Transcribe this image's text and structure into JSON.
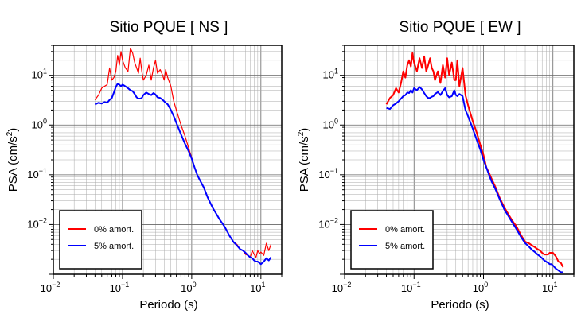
{
  "chart_data": [
    {
      "type": "line",
      "title": "Sitio PQUE [ NS ]",
      "xlabel": "Periodo (s)",
      "ylabel": "PSA (cm/s",
      "ylabel_sup": "2",
      "ylabel_close": ")",
      "xscale": "log",
      "yscale": "log",
      "xlim": [
        0.01,
        20
      ],
      "ylim": [
        0.001,
        40
      ],
      "grid": true,
      "legend_position": "bottom-left",
      "xticks": [
        {
          "value": 0.01,
          "base": "10",
          "exp": "−2"
        },
        {
          "value": 0.1,
          "base": "10",
          "exp": "−1"
        },
        {
          "value": 1,
          "base": "10",
          "exp": "0"
        },
        {
          "value": 10,
          "base": "10",
          "exp": "1"
        }
      ],
      "yticks": [
        {
          "value": 10,
          "base": "10",
          "exp": "1"
        },
        {
          "value": 1,
          "base": "10",
          "exp": "0"
        },
        {
          "value": 0.1,
          "base": "10",
          "exp": "−1"
        },
        {
          "value": 0.01,
          "base": "10",
          "exp": "−2"
        }
      ],
      "series": [
        {
          "name": "0% amort.",
          "color": "#ff0000",
          "width": 1.2,
          "x": [
            0.04,
            0.045,
            0.05,
            0.055,
            0.06,
            0.065,
            0.07,
            0.075,
            0.08,
            0.085,
            0.09,
            0.095,
            0.1,
            0.11,
            0.12,
            0.13,
            0.14,
            0.15,
            0.16,
            0.17,
            0.18,
            0.19,
            0.2,
            0.22,
            0.24,
            0.26,
            0.28,
            0.3,
            0.32,
            0.35,
            0.38,
            0.4,
            0.42,
            0.45,
            0.5,
            0.55,
            0.6,
            0.7,
            0.8,
            0.9,
            1.0,
            1.1,
            1.2,
            1.3,
            1.5,
            1.7,
            2.0,
            2.5,
            3.0,
            3.5,
            4.0,
            4.5,
            5.0,
            5.5,
            6.0,
            6.5,
            7.0,
            7.5,
            8.0,
            8.5,
            9.0,
            9.5,
            10,
            11,
            12,
            13,
            14
          ],
          "y": [
            3.2,
            4.0,
            5.5,
            6.0,
            6.5,
            14,
            8.0,
            9.0,
            12,
            25,
            16,
            30,
            20,
            14,
            12,
            35,
            28,
            18,
            14,
            11,
            22,
            12,
            8.0,
            10,
            16,
            8.0,
            14,
            20,
            11,
            13,
            10,
            8.0,
            13,
            9.0,
            6.0,
            3.0,
            2.0,
            1.0,
            0.6,
            0.35,
            0.22,
            0.14,
            0.1,
            0.08,
            0.055,
            0.035,
            0.022,
            0.013,
            0.009,
            0.006,
            0.0045,
            0.004,
            0.0032,
            0.003,
            0.0025,
            0.0024,
            0.0022,
            0.003,
            0.0025,
            0.0022,
            0.003,
            0.0026,
            0.0028,
            0.0024,
            0.0042,
            0.003,
            0.004
          ]
        },
        {
          "name": "5% amort.",
          "color": "#0000ff",
          "width": 2,
          "x": [
            0.04,
            0.045,
            0.05,
            0.055,
            0.06,
            0.065,
            0.07,
            0.075,
            0.08,
            0.085,
            0.09,
            0.095,
            0.1,
            0.11,
            0.12,
            0.13,
            0.14,
            0.15,
            0.16,
            0.17,
            0.18,
            0.19,
            0.2,
            0.22,
            0.24,
            0.26,
            0.28,
            0.3,
            0.32,
            0.35,
            0.38,
            0.4,
            0.42,
            0.45,
            0.5,
            0.55,
            0.6,
            0.7,
            0.8,
            0.9,
            1.0,
            1.1,
            1.2,
            1.3,
            1.5,
            1.7,
            2.0,
            2.5,
            3.0,
            3.5,
            4.0,
            4.5,
            5.0,
            5.5,
            6.0,
            6.5,
            7.0,
            7.5,
            8.0,
            8.5,
            9.0,
            9.5,
            10,
            11,
            12,
            13,
            14
          ],
          "y": [
            2.6,
            2.8,
            2.7,
            2.9,
            2.8,
            3.2,
            3.5,
            4.5,
            5.8,
            6.8,
            6.5,
            6.0,
            6.5,
            6.0,
            5.5,
            5.0,
            4.8,
            4.2,
            3.6,
            3.4,
            3.4,
            3.5,
            4.0,
            4.5,
            4.2,
            4.0,
            4.4,
            4.1,
            3.6,
            3.5,
            3.2,
            3.0,
            2.8,
            2.6,
            2.0,
            1.5,
            1.1,
            0.65,
            0.42,
            0.3,
            0.21,
            0.14,
            0.1,
            0.08,
            0.055,
            0.035,
            0.022,
            0.013,
            0.009,
            0.006,
            0.0045,
            0.0038,
            0.0032,
            0.003,
            0.0027,
            0.0024,
            0.0022,
            0.0021,
            0.0019,
            0.0018,
            0.0018,
            0.0017,
            0.0016,
            0.0018,
            0.0021,
            0.0019,
            0.0022
          ]
        }
      ]
    },
    {
      "type": "line",
      "title": "Sitio PQUE [ EW ]",
      "xlabel": "Periodo (s)",
      "ylabel": "PSA (cm/s",
      "ylabel_sup": "2",
      "ylabel_close": ")",
      "xscale": "log",
      "yscale": "log",
      "xlim": [
        0.01,
        20
      ],
      "ylim": [
        0.001,
        40
      ],
      "grid": true,
      "legend_position": "bottom-left",
      "xticks": [
        {
          "value": 0.01,
          "base": "10",
          "exp": "−2"
        },
        {
          "value": 0.1,
          "base": "10",
          "exp": "−1"
        },
        {
          "value": 1,
          "base": "10",
          "exp": "0"
        },
        {
          "value": 10,
          "base": "10",
          "exp": "1"
        }
      ],
      "yticks": [
        {
          "value": 10,
          "base": "10",
          "exp": "1"
        },
        {
          "value": 1,
          "base": "10",
          "exp": "0"
        },
        {
          "value": 0.1,
          "base": "10",
          "exp": "−1"
        },
        {
          "value": 0.01,
          "base": "10",
          "exp": "−2"
        }
      ],
      "series": [
        {
          "name": "0% amort.",
          "color": "#ff0000",
          "width": 2,
          "x": [
            0.04,
            0.045,
            0.05,
            0.055,
            0.06,
            0.065,
            0.07,
            0.075,
            0.08,
            0.085,
            0.09,
            0.095,
            0.1,
            0.11,
            0.12,
            0.13,
            0.14,
            0.15,
            0.16,
            0.17,
            0.18,
            0.19,
            0.2,
            0.22,
            0.24,
            0.26,
            0.28,
            0.3,
            0.32,
            0.35,
            0.38,
            0.4,
            0.42,
            0.45,
            0.5,
            0.55,
            0.6,
            0.7,
            0.8,
            0.9,
            1.0,
            1.1,
            1.2,
            1.3,
            1.5,
            1.7,
            2.0,
            2.5,
            3.0,
            3.5,
            4.0,
            4.5,
            5.0,
            5.5,
            6.0,
            6.5,
            7.0,
            7.5,
            8.0,
            8.5,
            9.0,
            9.5,
            10,
            11,
            12,
            13,
            14
          ],
          "y": [
            2.6,
            3.5,
            4.0,
            5.5,
            4.5,
            7.0,
            12,
            9.0,
            16,
            20,
            15,
            28,
            18,
            12,
            22,
            14,
            24,
            12,
            16,
            22,
            14,
            12,
            8.0,
            12,
            7.0,
            16,
            9.0,
            22,
            10,
            18,
            8.0,
            8.0,
            20,
            6.0,
            14,
            4.0,
            2.5,
            1.2,
            0.7,
            0.4,
            0.25,
            0.14,
            0.11,
            0.085,
            0.055,
            0.035,
            0.022,
            0.013,
            0.009,
            0.006,
            0.0045,
            0.0042,
            0.0038,
            0.0035,
            0.0032,
            0.003,
            0.0027,
            0.0025,
            0.0025,
            0.0025,
            0.0027,
            0.0027,
            0.0027,
            0.0023,
            0.0018,
            0.0017,
            0.0014
          ]
        },
        {
          "name": "5% amort.",
          "color": "#0000ff",
          "width": 2,
          "x": [
            0.04,
            0.045,
            0.05,
            0.055,
            0.06,
            0.065,
            0.07,
            0.075,
            0.08,
            0.085,
            0.09,
            0.095,
            0.1,
            0.11,
            0.12,
            0.13,
            0.14,
            0.15,
            0.16,
            0.17,
            0.18,
            0.19,
            0.2,
            0.22,
            0.24,
            0.26,
            0.28,
            0.3,
            0.32,
            0.35,
            0.38,
            0.4,
            0.42,
            0.45,
            0.5,
            0.55,
            0.6,
            0.7,
            0.8,
            0.9,
            1.0,
            1.1,
            1.2,
            1.3,
            1.5,
            1.7,
            2.0,
            2.5,
            3.0,
            3.5,
            4.0,
            4.5,
            5.0,
            5.5,
            6.0,
            6.5,
            7.0,
            7.5,
            8.0,
            8.5,
            9.0,
            9.5,
            10,
            11,
            12,
            13,
            14
          ],
          "y": [
            2.2,
            2.1,
            2.5,
            2.7,
            3.0,
            3.4,
            3.8,
            4.0,
            4.5,
            4.4,
            5.0,
            4.5,
            5.5,
            5.0,
            5.8,
            5.2,
            4.4,
            3.8,
            3.5,
            3.5,
            3.7,
            3.8,
            4.2,
            4.6,
            4.0,
            4.8,
            5.5,
            4.0,
            3.6,
            3.8,
            5.0,
            4.0,
            3.8,
            4.2,
            3.8,
            2.0,
            1.5,
            0.85,
            0.5,
            0.32,
            0.2,
            0.14,
            0.1,
            0.075,
            0.05,
            0.033,
            0.02,
            0.012,
            0.008,
            0.0055,
            0.0042,
            0.0036,
            0.0031,
            0.0028,
            0.0025,
            0.0023,
            0.0021,
            0.0019,
            0.0018,
            0.0017,
            0.0016,
            0.0016,
            0.0015,
            0.0013,
            0.0012,
            0.0011,
            0.0011
          ]
        }
      ]
    }
  ]
}
